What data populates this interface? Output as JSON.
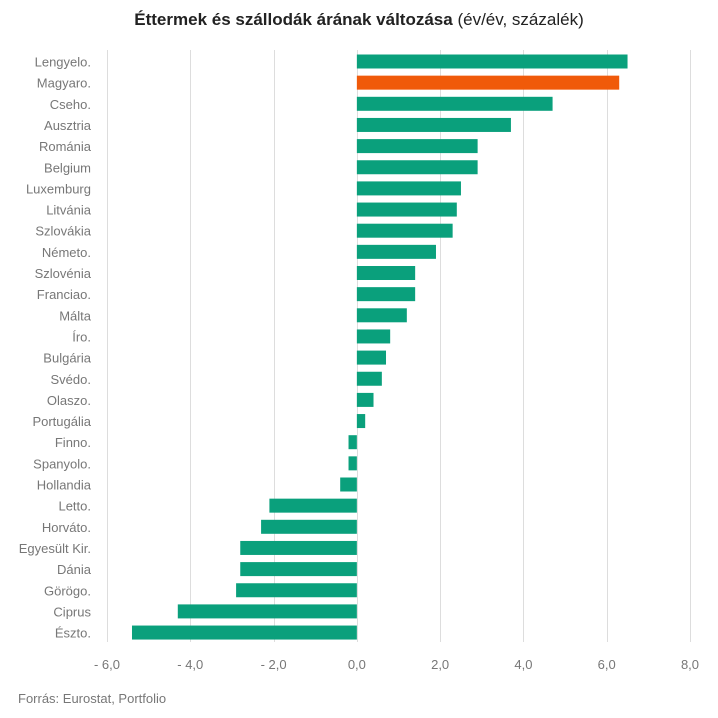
{
  "title_bold": "Éttermek és szállodák árának változása",
  "title_normal": "(év/év, százalék)",
  "source": "Forrás: Eurostat, Portfolio",
  "colors": {
    "bar": "#0aa07c",
    "highlight": "#f05a0a",
    "grid": "#dddddd",
    "label": "#777777"
  },
  "chart_data": {
    "type": "bar",
    "orientation": "horizontal",
    "title": "Éttermek és szállodák árának változása (év/év, százalék)",
    "categories": [
      "Lengyelo.",
      "Magyaro.",
      "Cseho.",
      "Ausztria",
      "Románia",
      "Belgium",
      "Luxemburg",
      "Litvánia",
      "Szlovákia",
      "Németo.",
      "Szlovénia",
      "Franciao.",
      "Málta",
      "Íro.",
      "Bulgária",
      "Svédo.",
      "Olaszo.",
      "Portugália",
      "Finno.",
      "Spanyolo.",
      "Hollandia",
      "Letto.",
      "Horváto.",
      "Egyesült Kir.",
      "Dánia",
      "Görögo.",
      "Ciprus",
      "Észto."
    ],
    "values": [
      6.5,
      6.3,
      4.7,
      3.7,
      2.9,
      2.9,
      2.5,
      2.4,
      2.3,
      1.9,
      1.4,
      1.4,
      1.2,
      0.8,
      0.7,
      0.6,
      0.4,
      0.2,
      -0.2,
      -0.2,
      -0.4,
      -2.1,
      -2.3,
      -2.8,
      -2.8,
      -2.9,
      -4.3,
      -5.4
    ],
    "highlight": "Magyaro.",
    "xlim": [
      -6,
      8
    ],
    "xticks": [
      -6,
      -4,
      -2,
      0,
      2,
      4,
      6,
      8
    ],
    "xtick_labels": [
      "- 6,0",
      "- 4,0",
      "- 2,0",
      "0,0",
      "2,0",
      "4,0",
      "6,0",
      "8,0"
    ],
    "grid": true
  }
}
